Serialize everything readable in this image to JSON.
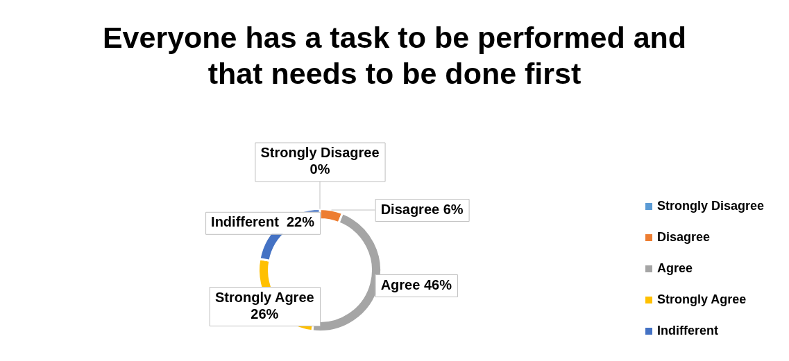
{
  "chart_data": {
    "type": "donut",
    "title": "Everyone has a task to be performed and that needs to be done first",
    "categories": [
      "Strongly Disagree",
      "Disagree",
      "Agree",
      "Strongly Agree",
      "Indifferent"
    ],
    "values": [
      0,
      6,
      46,
      26,
      22
    ],
    "colors": [
      "#5b9bd5",
      "#ed7d31",
      "#a5a5a5",
      "#ffc000",
      "#4472c4"
    ],
    "value_labels": [
      "Strongly Disagree 0%",
      "Disagree 6%",
      "Agree 46%",
      "Strongly Agree 26%",
      "Indifferent  22%"
    ],
    "legend": "right"
  }
}
